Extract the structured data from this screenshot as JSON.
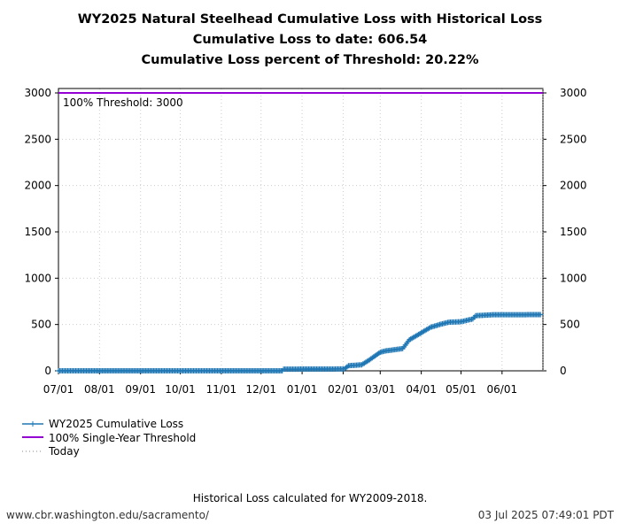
{
  "chart_data": {
    "type": "line",
    "title": [
      "WY2025 Natural Steelhead Cumulative Loss with Historical Loss",
      "Cumulative Loss to date: 606.54",
      "Cumulative Loss percent of Threshold: 20.22%"
    ],
    "x_ticks": [
      "07/01",
      "08/01",
      "09/01",
      "10/01",
      "11/01",
      "12/01",
      "01/01",
      "02/01",
      "03/01",
      "04/01",
      "05/01",
      "06/01"
    ],
    "y_ticks": [
      0,
      500,
      1000,
      1500,
      2000,
      2500,
      3000
    ],
    "ylim": [
      0,
      3000
    ],
    "xlim": [
      "2024-07-01",
      "2025-07-03"
    ],
    "grid": true,
    "legend_placement": "below-left",
    "series": [
      {
        "name": "WY2025 Cumulative Loss",
        "color": "#1f77b4",
        "marker": "+",
        "points": [
          [
            "2024-07-01",
            0
          ],
          [
            "2024-12-17",
            0
          ],
          [
            "2024-12-18",
            18
          ],
          [
            "2025-02-02",
            20
          ],
          [
            "2025-02-05",
            55
          ],
          [
            "2025-02-15",
            65
          ],
          [
            "2025-02-20",
            110
          ],
          [
            "2025-03-01",
            200
          ],
          [
            "2025-03-05",
            215
          ],
          [
            "2025-03-18",
            240
          ],
          [
            "2025-03-23",
            335
          ],
          [
            "2025-04-01",
            410
          ],
          [
            "2025-04-08",
            470
          ],
          [
            "2025-04-15",
            500
          ],
          [
            "2025-04-22",
            525
          ],
          [
            "2025-05-01",
            530
          ],
          [
            "2025-05-10",
            560
          ],
          [
            "2025-05-12",
            595
          ],
          [
            "2025-05-25",
            605
          ],
          [
            "2025-06-30",
            606.54
          ]
        ]
      },
      {
        "name": "100% Single-Year Threshold",
        "color": "#9400d3",
        "value": 3000
      },
      {
        "name": "Today",
        "color": "#888888",
        "style": "dotted",
        "date": "2025-07-02"
      }
    ],
    "annotation": "100% Threshold: 3000"
  },
  "footer": {
    "note": "Historical Loss calculated for WY2009-2018.",
    "url": "www.cbr.washington.edu/sacramento/",
    "timestamp": "03 Jul 2025 07:49:01 PDT"
  }
}
